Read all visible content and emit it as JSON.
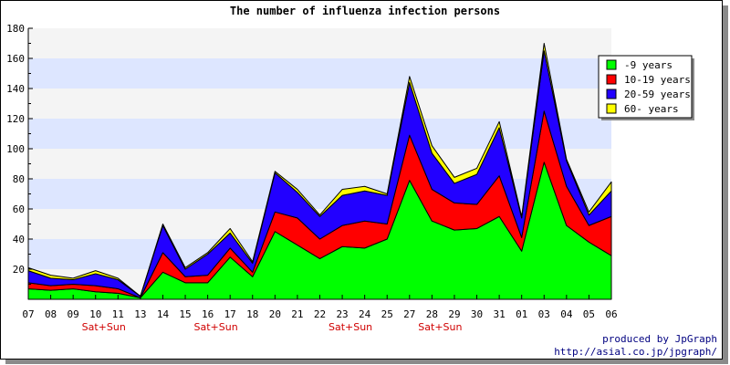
{
  "chart_data": {
    "type": "area",
    "stacked": true,
    "title": "The number of influenza infection persons",
    "categories": [
      "07",
      "08",
      "09",
      "10",
      "11",
      "13",
      "14",
      "15",
      "16",
      "17",
      "18",
      "20",
      "21",
      "22",
      "23",
      "24",
      "25",
      "27",
      "28",
      "29",
      "30",
      "31",
      "01",
      "03",
      "04",
      "05",
      "06"
    ],
    "weekend_labels": [
      {
        "category": "10",
        "label": "Sat+Sun"
      },
      {
        "category": "16",
        "label": "Sat+Sun"
      },
      {
        "category": "23",
        "label": "Sat+Sun"
      },
      {
        "category": "28",
        "label": "Sat+Sun"
      }
    ],
    "ylim": [
      0,
      180
    ],
    "yticks": [
      20,
      40,
      60,
      80,
      100,
      120,
      140,
      160,
      180
    ],
    "grid": true,
    "legend_position": "top-right",
    "series": [
      {
        "name": "-9 years",
        "color": "#00ff00",
        "values": [
          7,
          6,
          7,
          5,
          4,
          1,
          18,
          11,
          11,
          28,
          15,
          45,
          36,
          27,
          35,
          34,
          40,
          79,
          52,
          46,
          47,
          55,
          32,
          91,
          49,
          38,
          29
        ]
      },
      {
        "name": "10-19 years",
        "color": "#ff0000",
        "values": [
          4,
          3,
          3,
          4,
          3,
          0,
          13,
          4,
          5,
          6,
          3,
          13,
          18,
          13,
          14,
          18,
          10,
          30,
          21,
          18,
          16,
          27,
          9,
          34,
          26,
          11,
          26
        ]
      },
      {
        "name": "20-59 years",
        "color": "#2200ff",
        "values": [
          8,
          5,
          3,
          8,
          6,
          1,
          18,
          5,
          14,
          10,
          6,
          26,
          17,
          15,
          20,
          20,
          19,
          35,
          24,
          13,
          20,
          32,
          13,
          40,
          17,
          7,
          17
        ]
      },
      {
        "name": "60- years",
        "color": "#ffff00",
        "values": [
          2,
          2,
          1,
          2,
          1,
          0,
          1,
          1,
          1,
          3,
          1,
          1,
          2,
          1,
          4,
          3,
          1,
          4,
          5,
          4,
          4,
          4,
          1,
          5,
          1,
          2,
          6
        ]
      }
    ]
  },
  "footer": {
    "credit": "produced by JpGraph",
    "url": "http://asial.co.jp/jpgraph/"
  },
  "colors": {
    "band_light": "#f4f4f4",
    "band_blue": "#dde6ff",
    "weekend_label": "#d00000",
    "footer_text": "#000080"
  }
}
